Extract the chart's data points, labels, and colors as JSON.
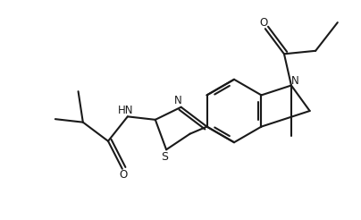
{
  "bg_color": "#ffffff",
  "line_color": "#1a1a1a",
  "line_width": 1.5,
  "fig_width": 4.04,
  "fig_height": 2.46,
  "dpi": 100,
  "xlim": [
    0,
    10.1
  ],
  "ylim": [
    0,
    6.15
  ]
}
